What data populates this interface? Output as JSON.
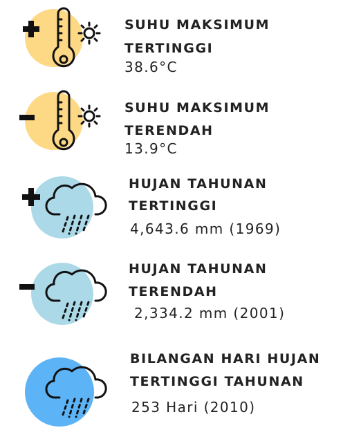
{
  "items": [
    {
      "title_lines": [
        "SUHU MAKSIMUM",
        "TERTINGGI"
      ],
      "value": "38.6°C"
    },
    {
      "title_lines": [
        "SUHU MAKSIMUM",
        "TERENDAH"
      ],
      "value": "13.9°C"
    },
    {
      "title_lines": [
        "HUJAN TAHUNAN",
        "TERTINGGI"
      ],
      "value": "4,643.6 mm (1969)"
    },
    {
      "title_lines": [
        "HUJAN TAHUNAN",
        "TERENDAH"
      ],
      "value": "2,334.2 mm (2001)"
    },
    {
      "title_lines": [
        "BILANGAN HARI HUJAN",
        "TERTINGGI TAHUNAN"
      ],
      "value": "253 Hari (2010)"
    }
  ]
}
